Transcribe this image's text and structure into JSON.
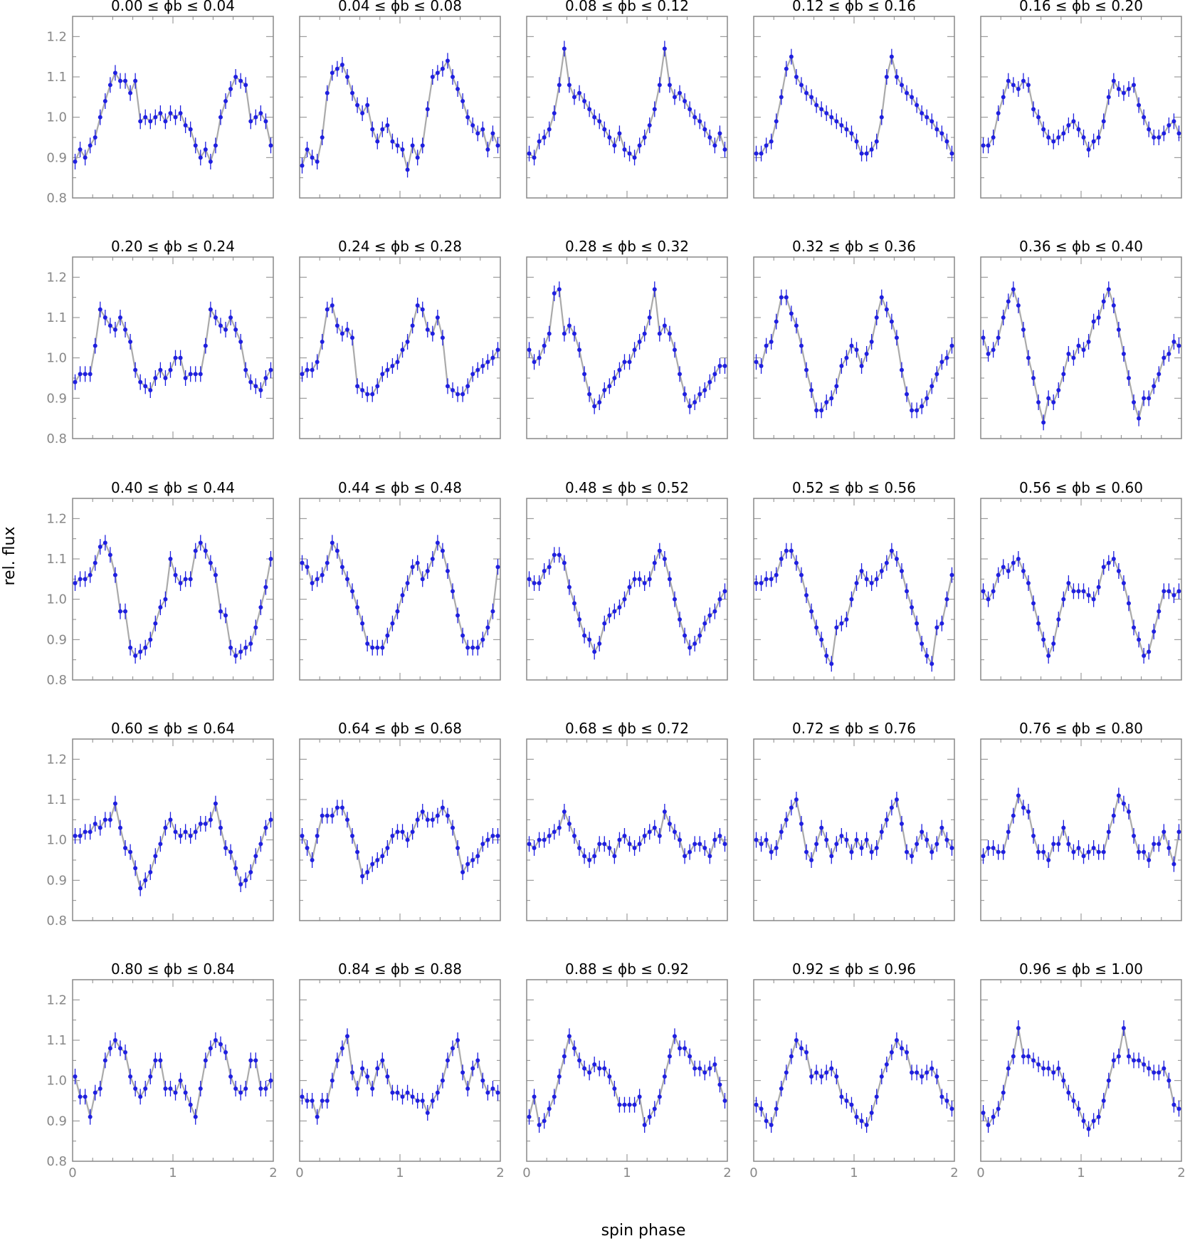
{
  "figure": {
    "xlabel": "spin phase",
    "ylabel": "rel. flux",
    "colors": {
      "points": "#1f1fe0",
      "line": "#aaaaaa",
      "frame": "#888888",
      "ticks": "#888888"
    }
  },
  "chart_data": {
    "type": "scatter",
    "layout": {
      "rows": 5,
      "cols": 5
    },
    "xlim": [
      0,
      2
    ],
    "ylim": [
      0.8,
      1.25
    ],
    "xticks": [
      "0",
      "1",
      "2"
    ],
    "yticks": [
      "0.8",
      "0.9",
      "1.0",
      "1.1",
      "1.2"
    ],
    "error_bars": true,
    "connecting_line": true,
    "points_per_panel": 40,
    "panels": [
      {
        "title": "0.00 ≤ ϕb ≤ 0.04",
        "values": [
          0.89,
          0.92,
          0.9,
          0.93,
          0.95,
          1.0,
          1.04,
          1.08,
          1.11,
          1.09,
          1.09,
          1.06,
          1.09,
          0.99,
          1.0,
          0.99,
          1.0,
          1.01,
          0.99,
          1.01,
          1.0,
          1.01,
          0.98,
          0.97,
          0.93,
          0.9,
          0.92,
          0.89,
          0.93,
          1.0,
          1.04,
          1.07,
          1.1,
          1.09,
          1.08,
          0.99,
          1.0,
          1.01,
          0.99,
          0.93
        ]
      },
      {
        "title": "0.04 ≤ ϕb ≤ 0.08",
        "values": [
          0.88,
          0.92,
          0.9,
          0.89,
          0.95,
          1.06,
          1.11,
          1.12,
          1.13,
          1.1,
          1.06,
          1.03,
          1.01,
          1.03,
          0.97,
          0.94,
          0.97,
          0.98,
          0.94,
          0.93,
          0.92,
          0.87,
          0.93,
          0.9,
          0.93,
          1.02,
          1.1,
          1.11,
          1.12,
          1.14,
          1.1,
          1.07,
          1.04,
          1.0,
          0.98,
          0.96,
          0.97,
          0.92,
          0.96,
          0.93
        ]
      },
      {
        "title": "0.08 ≤ ϕb ≤ 0.12",
        "values": [
          0.91,
          0.9,
          0.94,
          0.95,
          0.97,
          1.01,
          1.08,
          1.17,
          1.08,
          1.05,
          1.06,
          1.04,
          1.02,
          1.0,
          0.99,
          0.97,
          0.95,
          0.93,
          0.96,
          0.92,
          0.91,
          0.9,
          0.93,
          0.95,
          0.98,
          1.02,
          1.08,
          1.17,
          1.08,
          1.05,
          1.06,
          1.04,
          1.02,
          1.0,
          0.99,
          0.97,
          0.95,
          0.93,
          0.96,
          0.92
        ]
      },
      {
        "title": "0.12 ≤ ϕb ≤ 0.16",
        "values": [
          0.91,
          0.91,
          0.93,
          0.94,
          0.99,
          1.05,
          1.12,
          1.15,
          1.1,
          1.08,
          1.06,
          1.05,
          1.03,
          1.02,
          1.01,
          1.0,
          0.99,
          0.98,
          0.97,
          0.96,
          0.94,
          0.91,
          0.91,
          0.92,
          0.94,
          1.0,
          1.1,
          1.15,
          1.1,
          1.08,
          1.06,
          1.05,
          1.03,
          1.01,
          1.0,
          0.99,
          0.97,
          0.96,
          0.94,
          0.91
        ]
      },
      {
        "title": "0.16 ≤ ϕb ≤ 0.20",
        "values": [
          0.93,
          0.93,
          0.95,
          1.01,
          1.05,
          1.09,
          1.08,
          1.07,
          1.09,
          1.08,
          1.02,
          1.0,
          0.97,
          0.95,
          0.94,
          0.95,
          0.96,
          0.98,
          0.99,
          0.97,
          0.95,
          0.92,
          0.94,
          0.95,
          0.99,
          1.05,
          1.09,
          1.07,
          1.06,
          1.07,
          1.08,
          1.03,
          1.0,
          0.97,
          0.95,
          0.95,
          0.96,
          0.98,
          0.99,
          0.96
        ]
      },
      {
        "title": "0.20 ≤ ϕb ≤ 0.24",
        "values": [
          0.94,
          0.96,
          0.96,
          0.96,
          1.03,
          1.12,
          1.1,
          1.08,
          1.07,
          1.1,
          1.07,
          1.04,
          0.97,
          0.94,
          0.93,
          0.92,
          0.95,
          0.97,
          0.95,
          0.97,
          1.0,
          1.0,
          0.95,
          0.96,
          0.96,
          0.96,
          1.03,
          1.12,
          1.1,
          1.08,
          1.07,
          1.1,
          1.07,
          1.04,
          0.97,
          0.94,
          0.93,
          0.92,
          0.95,
          0.97
        ]
      },
      {
        "title": "0.24 ≤ ϕb ≤ 0.28",
        "values": [
          0.96,
          0.97,
          0.97,
          0.99,
          1.04,
          1.12,
          1.13,
          1.08,
          1.06,
          1.07,
          1.05,
          0.93,
          0.92,
          0.91,
          0.91,
          0.93,
          0.96,
          0.97,
          0.98,
          0.99,
          1.02,
          1.04,
          1.08,
          1.13,
          1.12,
          1.07,
          1.06,
          1.1,
          1.05,
          0.93,
          0.92,
          0.91,
          0.91,
          0.93,
          0.96,
          0.97,
          0.98,
          0.99,
          1.0,
          1.02
        ]
      },
      {
        "title": "0.28 ≤ ϕb ≤ 0.32",
        "values": [
          1.02,
          0.99,
          1.0,
          1.03,
          1.06,
          1.16,
          1.17,
          1.06,
          1.08,
          1.06,
          1.02,
          0.96,
          0.91,
          0.88,
          0.89,
          0.92,
          0.93,
          0.95,
          0.97,
          0.99,
          0.99,
          1.02,
          1.04,
          1.06,
          1.1,
          1.17,
          1.06,
          1.08,
          1.06,
          1.02,
          0.96,
          0.91,
          0.88,
          0.89,
          0.91,
          0.92,
          0.94,
          0.96,
          0.98,
          0.98
        ]
      },
      {
        "title": "0.32 ≤ ϕb ≤ 0.36",
        "values": [
          0.99,
          0.98,
          1.03,
          1.04,
          1.09,
          1.15,
          1.15,
          1.11,
          1.08,
          1.03,
          0.97,
          0.92,
          0.87,
          0.87,
          0.89,
          0.9,
          0.93,
          0.98,
          1.0,
          1.03,
          1.02,
          0.98,
          1.01,
          1.04,
          1.1,
          1.15,
          1.12,
          1.09,
          1.05,
          0.97,
          0.91,
          0.87,
          0.87,
          0.88,
          0.9,
          0.93,
          0.96,
          0.99,
          1.0,
          1.03
        ]
      },
      {
        "title": "0.36 ≤ ϕb ≤ 0.40",
        "values": [
          1.05,
          1.01,
          1.02,
          1.05,
          1.1,
          1.14,
          1.17,
          1.13,
          1.07,
          1.0,
          0.95,
          0.89,
          0.84,
          0.9,
          0.89,
          0.92,
          0.96,
          1.01,
          1.0,
          1.03,
          1.02,
          1.04,
          1.09,
          1.1,
          1.14,
          1.17,
          1.13,
          1.07,
          1.01,
          0.95,
          0.89,
          0.85,
          0.9,
          0.9,
          0.93,
          0.96,
          1.0,
          1.01,
          1.04,
          1.03
        ]
      },
      {
        "title": "0.40 ≤ ϕb ≤ 0.44",
        "values": [
          1.04,
          1.05,
          1.05,
          1.06,
          1.09,
          1.13,
          1.14,
          1.11,
          1.06,
          0.97,
          0.97,
          0.88,
          0.86,
          0.87,
          0.88,
          0.9,
          0.94,
          0.98,
          1.0,
          1.1,
          1.06,
          1.04,
          1.05,
          1.05,
          1.12,
          1.14,
          1.12,
          1.09,
          1.06,
          0.97,
          0.96,
          0.88,
          0.86,
          0.87,
          0.88,
          0.89,
          0.93,
          0.98,
          1.03,
          1.1
        ]
      },
      {
        "title": "0.44 ≤ ϕb ≤ 0.48",
        "values": [
          1.09,
          1.08,
          1.04,
          1.05,
          1.06,
          1.09,
          1.14,
          1.12,
          1.08,
          1.05,
          1.02,
          0.98,
          0.94,
          0.89,
          0.88,
          0.88,
          0.88,
          0.91,
          0.94,
          0.97,
          1.01,
          1.04,
          1.08,
          1.09,
          1.05,
          1.07,
          1.1,
          1.14,
          1.12,
          1.07,
          1.02,
          0.96,
          0.91,
          0.88,
          0.88,
          0.88,
          0.9,
          0.93,
          0.97,
          1.08
        ]
      },
      {
        "title": "0.48 ≤ ϕb ≤ 0.52",
        "values": [
          1.05,
          1.04,
          1.04,
          1.07,
          1.08,
          1.11,
          1.11,
          1.09,
          1.03,
          0.99,
          0.95,
          0.91,
          0.9,
          0.87,
          0.89,
          0.94,
          0.96,
          0.97,
          0.98,
          1.0,
          1.03,
          1.05,
          1.05,
          1.04,
          1.05,
          1.09,
          1.12,
          1.1,
          1.05,
          1.0,
          0.95,
          0.91,
          0.88,
          0.89,
          0.91,
          0.94,
          0.96,
          0.97,
          1.0,
          1.02
        ]
      },
      {
        "title": "0.52 ≤ ϕb ≤ 0.56",
        "values": [
          1.04,
          1.04,
          1.05,
          1.05,
          1.06,
          1.1,
          1.12,
          1.12,
          1.09,
          1.06,
          1.01,
          0.97,
          0.93,
          0.9,
          0.86,
          0.84,
          0.93,
          0.94,
          0.95,
          1.0,
          1.04,
          1.07,
          1.05,
          1.04,
          1.05,
          1.07,
          1.09,
          1.12,
          1.1,
          1.07,
          1.02,
          0.98,
          0.94,
          0.89,
          0.86,
          0.84,
          0.93,
          0.94,
          1.0,
          1.06
        ]
      },
      {
        "title": "0.56 ≤ ϕb ≤ 0.60",
        "values": [
          1.02,
          1.0,
          1.02,
          1.06,
          1.08,
          1.07,
          1.09,
          1.1,
          1.07,
          1.04,
          0.99,
          0.94,
          0.9,
          0.86,
          0.89,
          0.95,
          1.0,
          1.04,
          1.02,
          1.02,
          1.02,
          1.01,
          1.0,
          1.03,
          1.08,
          1.09,
          1.1,
          1.07,
          1.04,
          0.99,
          0.93,
          0.9,
          0.86,
          0.87,
          0.92,
          0.97,
          1.02,
          1.02,
          1.01,
          1.02
        ]
      },
      {
        "title": "0.60 ≤ ϕb ≤ 0.64",
        "values": [
          1.01,
          1.01,
          1.02,
          1.02,
          1.04,
          1.03,
          1.05,
          1.05,
          1.09,
          1.03,
          0.98,
          0.97,
          0.93,
          0.88,
          0.9,
          0.92,
          0.96,
          0.99,
          1.03,
          1.05,
          1.02,
          1.01,
          1.02,
          1.01,
          1.02,
          1.04,
          1.04,
          1.05,
          1.09,
          1.03,
          0.98,
          0.97,
          0.93,
          0.89,
          0.9,
          0.92,
          0.96,
          0.99,
          1.03,
          1.05
        ]
      },
      {
        "title": "0.64 ≤ ϕb ≤ 0.68",
        "values": [
          1.01,
          0.98,
          0.95,
          1.01,
          1.06,
          1.06,
          1.06,
          1.08,
          1.08,
          1.05,
          1.01,
          0.97,
          0.91,
          0.92,
          0.94,
          0.95,
          0.96,
          0.98,
          1.01,
          1.02,
          1.02,
          1.0,
          1.02,
          1.05,
          1.07,
          1.05,
          1.05,
          1.06,
          1.08,
          1.06,
          1.03,
          0.98,
          0.92,
          0.94,
          0.95,
          0.96,
          0.99,
          1.0,
          1.01,
          1.01
        ]
      },
      {
        "title": "0.68 ≤ ϕb ≤ 0.72",
        "values": [
          0.99,
          0.98,
          1.0,
          1.0,
          1.01,
          1.02,
          1.03,
          1.07,
          1.04,
          1.01,
          0.98,
          0.96,
          0.95,
          0.96,
          0.99,
          0.99,
          0.98,
          0.96,
          1.0,
          1.01,
          0.99,
          0.98,
          0.99,
          1.01,
          1.02,
          1.03,
          1.01,
          1.07,
          1.04,
          1.02,
          1.0,
          0.96,
          0.97,
          0.99,
          0.99,
          0.98,
          0.96,
          1.0,
          1.01,
          0.99
        ]
      },
      {
        "title": "0.72 ≤ ϕb ≤ 0.76",
        "values": [
          1.0,
          0.99,
          1.0,
          0.97,
          0.98,
          1.02,
          1.05,
          1.08,
          1.1,
          1.04,
          0.97,
          0.95,
          0.99,
          1.03,
          1.0,
          0.96,
          0.99,
          1.01,
          1.0,
          0.97,
          1.0,
          0.98,
          1.0,
          0.97,
          0.98,
          1.02,
          1.05,
          1.08,
          1.1,
          1.04,
          0.97,
          0.96,
          0.99,
          1.02,
          1.0,
          0.97,
          0.99,
          1.03,
          1.0,
          0.98
        ]
      },
      {
        "title": "0.76 ≤ ϕb ≤ 0.80",
        "values": [
          0.96,
          0.98,
          0.98,
          0.97,
          0.97,
          1.02,
          1.06,
          1.11,
          1.08,
          1.07,
          1.01,
          0.97,
          0.97,
          0.95,
          0.99,
          0.99,
          1.03,
          0.99,
          0.97,
          0.98,
          0.96,
          0.97,
          0.98,
          0.97,
          0.97,
          1.02,
          1.06,
          1.11,
          1.09,
          1.07,
          1.01,
          0.97,
          0.97,
          0.95,
          0.99,
          0.99,
          1.02,
          0.98,
          0.94,
          1.02
        ]
      },
      {
        "title": "0.80 ≤ ϕb ≤ 0.84",
        "values": [
          1.01,
          0.96,
          0.96,
          0.91,
          0.97,
          0.98,
          1.05,
          1.08,
          1.1,
          1.08,
          1.07,
          1.01,
          0.98,
          0.96,
          0.98,
          1.01,
          1.05,
          1.05,
          0.98,
          0.98,
          0.97,
          1.0,
          0.97,
          0.94,
          0.91,
          0.98,
          1.05,
          1.08,
          1.1,
          1.09,
          1.07,
          1.01,
          0.98,
          0.97,
          0.98,
          1.05,
          1.05,
          0.98,
          0.98,
          1.0
        ]
      },
      {
        "title": "0.84 ≤ ϕb ≤ 0.88",
        "values": [
          0.96,
          0.95,
          0.95,
          0.91,
          0.95,
          0.95,
          1.0,
          1.05,
          1.08,
          1.11,
          1.02,
          0.98,
          1.03,
          1.01,
          0.98,
          1.03,
          1.05,
          1.01,
          0.97,
          0.97,
          0.96,
          0.97,
          0.96,
          0.95,
          0.95,
          0.92,
          0.95,
          0.97,
          1.0,
          1.05,
          1.08,
          1.1,
          1.02,
          0.98,
          1.03,
          1.05,
          1.0,
          0.97,
          0.98,
          0.97
        ]
      },
      {
        "title": "0.88 ≤ ϕb ≤ 0.92",
        "values": [
          0.91,
          0.96,
          0.89,
          0.9,
          0.93,
          0.96,
          1.01,
          1.06,
          1.11,
          1.08,
          1.05,
          1.03,
          1.02,
          1.04,
          1.03,
          1.03,
          1.01,
          0.98,
          0.94,
          0.94,
          0.94,
          0.94,
          0.96,
          0.89,
          0.91,
          0.93,
          0.96,
          1.01,
          1.06,
          1.11,
          1.08,
          1.08,
          1.06,
          1.03,
          1.03,
          1.02,
          1.03,
          1.04,
          0.99,
          0.95
        ]
      },
      {
        "title": "0.92 ≤ ϕb ≤ 0.96",
        "values": [
          0.94,
          0.93,
          0.9,
          0.89,
          0.93,
          0.98,
          1.02,
          1.06,
          1.1,
          1.08,
          1.07,
          1.01,
          1.02,
          1.01,
          1.02,
          1.03,
          1.01,
          0.96,
          0.95,
          0.94,
          0.91,
          0.9,
          0.89,
          0.92,
          0.96,
          1.01,
          1.04,
          1.07,
          1.1,
          1.08,
          1.07,
          1.02,
          1.02,
          1.01,
          1.02,
          1.03,
          1.01,
          0.96,
          0.95,
          0.93
        ]
      },
      {
        "title": "0.96 ≤ ϕb ≤ 1.00",
        "values": [
          0.92,
          0.89,
          0.91,
          0.93,
          0.97,
          1.03,
          1.06,
          1.13,
          1.06,
          1.06,
          1.05,
          1.04,
          1.03,
          1.03,
          1.02,
          1.03,
          1.0,
          0.97,
          0.95,
          0.93,
          0.9,
          0.88,
          0.9,
          0.91,
          0.95,
          1.0,
          1.05,
          1.06,
          1.13,
          1.06,
          1.05,
          1.05,
          1.04,
          1.03,
          1.02,
          1.02,
          1.03,
          1.0,
          0.94,
          0.93
        ]
      }
    ]
  }
}
